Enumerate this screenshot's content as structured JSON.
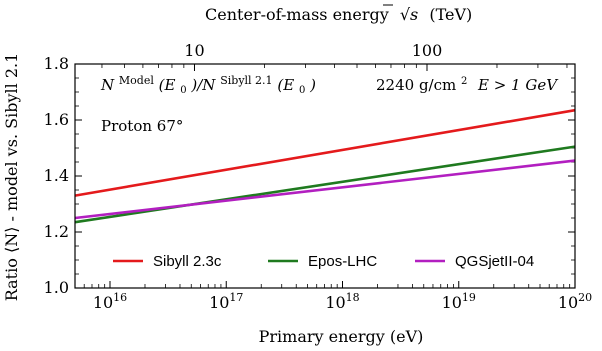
{
  "chart_data": {
    "type": "line",
    "xlabel": "Primary energy (eV)",
    "top_xlabel": "Center-of-mass energy",
    "top_xlabel_sqrt": "√s",
    "top_xlabel_unit": "(TeV)",
    "ylabel": "Ratio ⟨N⟩ - model vs. Sibyll 2.1",
    "x_scale": "log",
    "xlim": [
      5000000000000000.0,
      1e+20
    ],
    "ylim": [
      1.0,
      1.8
    ],
    "y_ticks": [
      1.0,
      1.2,
      1.4,
      1.6,
      1.8
    ],
    "y_tick_labels": [
      "1.0",
      "1.2",
      "1.4",
      "1.6",
      "1.8"
    ],
    "x_ticks": [
      1e+16,
      1e+17,
      1e+18,
      1e+19,
      1e+20
    ],
    "x_tick_base": "10",
    "x_tick_exponents": [
      "16",
      "17",
      "18",
      "19",
      "20"
    ],
    "top_ticks_tev": [
      10,
      100
    ],
    "top_tick_labels": [
      "10",
      "100"
    ],
    "grid": false,
    "legend_position": "bottom",
    "annotations": {
      "formula_N": "N",
      "formula_sup1": "Model",
      "formula_mid": "(E",
      "formula_sub": "0",
      "formula_slash": ")/N",
      "formula_sup2": "Sibyll 2.1",
      "formula_end": ")",
      "primary": "Proton 67°",
      "depth": "2240 g/cm",
      "depth_sup": "2",
      "threshold": "E   > 1 GeV"
    },
    "series": [
      {
        "name": "Sibyll 2.3c",
        "color": "#e41a1c",
        "x": [
          5000000000000000.0,
          1e+20
        ],
        "y": [
          1.33,
          1.635
        ]
      },
      {
        "name": "Epos-LHC",
        "color": "#1f7a1f",
        "x": [
          5000000000000000.0,
          1e+20
        ],
        "y": [
          1.235,
          1.505
        ]
      },
      {
        "name": "QGSjetII-04",
        "color": "#b21fc0",
        "x": [
          5000000000000000.0,
          1e+20
        ],
        "y": [
          1.25,
          1.455
        ]
      }
    ]
  }
}
